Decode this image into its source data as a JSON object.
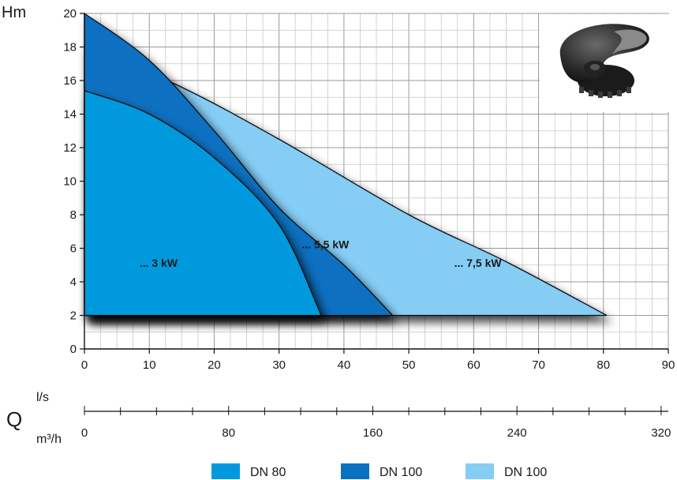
{
  "chart_data": {
    "type": "area",
    "ylabel": "Hm",
    "xlabel_secondary_left": "Q",
    "x_unit_primary": "l/s",
    "x_unit_secondary": "m³/h",
    "xlim": [
      0,
      90
    ],
    "ylim": [
      0,
      20
    ],
    "x_ticks": [
      "0",
      "10",
      "20",
      "30",
      "40",
      "50",
      "60",
      "70",
      "80",
      "90"
    ],
    "y_ticks": [
      "0",
      "2",
      "4",
      "6",
      "8",
      "10",
      "12",
      "14",
      "16",
      "18",
      "20"
    ],
    "secondary_x_ticks": [
      "0",
      "80",
      "160",
      "240",
      "320"
    ],
    "grid": true,
    "legend_position": "bottom",
    "series": [
      {
        "name": "DN 80",
        "color": "#0099dd",
        "label": "... 3 kW",
        "curve": [
          [
            0,
            15.4
          ],
          [
            10,
            14.0
          ],
          [
            20,
            11.4
          ],
          [
            30,
            7.4
          ],
          [
            36.5,
            2.0
          ]
        ]
      },
      {
        "name": "DN 100",
        "color": "#0a70c0",
        "label": "... 5,5 kW",
        "curve": [
          [
            0,
            20.0
          ],
          [
            10,
            17.2
          ],
          [
            20,
            13.0
          ],
          [
            30,
            8.4
          ],
          [
            40,
            5.0
          ],
          [
            47.5,
            2.0
          ]
        ]
      },
      {
        "name": "DN 100",
        "color": "#85cdf5",
        "label": "... 7,5 kW",
        "curve": [
          [
            0,
            18.1
          ],
          [
            15,
            15.6
          ],
          [
            30,
            12.5
          ],
          [
            50,
            8.0
          ],
          [
            65,
            5.2
          ],
          [
            80.5,
            2.0
          ]
        ]
      }
    ]
  }
}
